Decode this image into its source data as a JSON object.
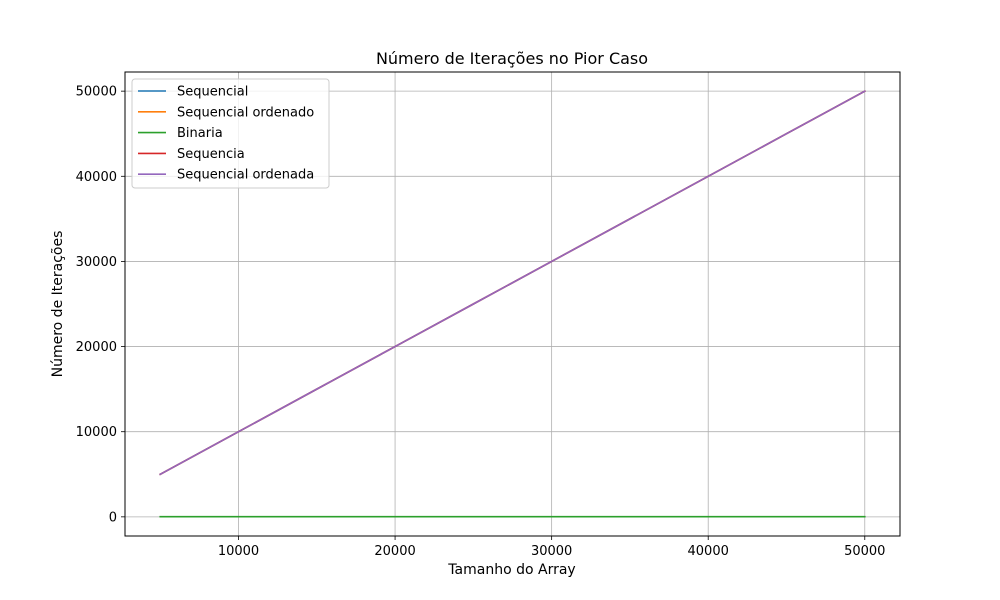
{
  "chart_data": {
    "type": "line",
    "title": "Número de Iterações no Pior Caso",
    "xlabel": "Tamanho do Array",
    "ylabel": "Número de Iterações",
    "xlim": [
      2750,
      52250
    ],
    "ylim": [
      -2250,
      52250
    ],
    "xticks": [
      10000,
      20000,
      30000,
      40000,
      50000
    ],
    "yticks": [
      0,
      10000,
      20000,
      30000,
      40000,
      50000
    ],
    "xtick_labels": [
      "10000",
      "20000",
      "30000",
      "40000",
      "50000"
    ],
    "ytick_labels": [
      "0",
      "10000",
      "20000",
      "30000",
      "40000",
      "50000"
    ],
    "grid": true,
    "legend_position": "top-left",
    "x": [
      5000,
      10000,
      15000,
      20000,
      25000,
      30000,
      35000,
      40000,
      45000,
      50000
    ],
    "series": [
      {
        "name": "Sequencial",
        "color": "#1f77b4",
        "values": [
          5000,
          10000,
          15000,
          20000,
          25000,
          30000,
          35000,
          40000,
          45000,
          50000
        ]
      },
      {
        "name": "Sequencial ordenado",
        "color": "#ff7f0e",
        "values": [
          5000,
          10000,
          15000,
          20000,
          25000,
          30000,
          35000,
          40000,
          45000,
          50000
        ]
      },
      {
        "name": "Binaria",
        "color": "#2ca02c",
        "values": [
          13,
          14,
          14,
          15,
          15,
          15,
          16,
          16,
          16,
          16
        ]
      },
      {
        "name": "Sequencia",
        "color": "#d62728",
        "values": [
          5000,
          10000,
          15000,
          20000,
          25000,
          30000,
          35000,
          40000,
          45000,
          50000
        ]
      },
      {
        "name": "Sequencial ordenada",
        "color": "#9467bd",
        "values": [
          5000,
          10000,
          15000,
          20000,
          25000,
          30000,
          35000,
          40000,
          45000,
          50000
        ]
      }
    ]
  }
}
